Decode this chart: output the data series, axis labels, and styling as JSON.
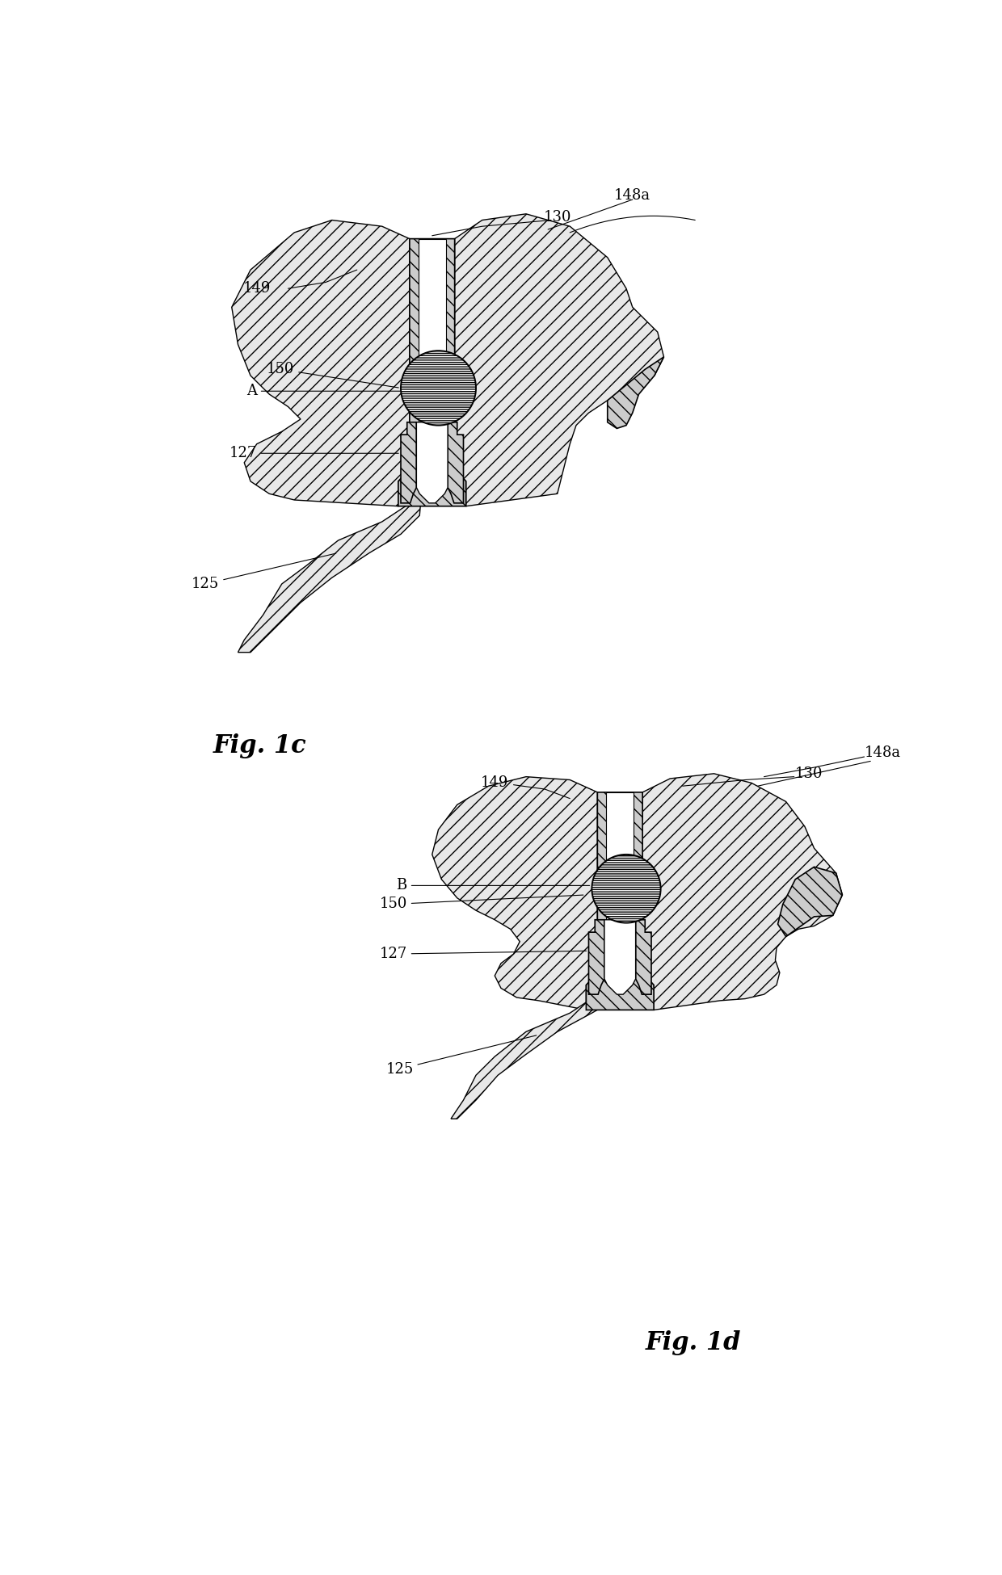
{
  "bg_color": "#ffffff",
  "line_color": "#000000",
  "fig1c_title": "Fig. 1c",
  "fig1d_title": "Fig. 1d",
  "labels": {
    "148a_top": "148a",
    "130_top": "130",
    "149_top": "149",
    "150_top": "150",
    "A_label": "A",
    "127_top": "127",
    "125_top": "125",
    "148a_bot": "148a",
    "130_bot": "130",
    "149_bot": "149",
    "B_label": "B",
    "150_bot": "150",
    "127_bot": "127",
    "125_bot": "125"
  },
  "font_size_label": 13,
  "font_size_fig": 22
}
